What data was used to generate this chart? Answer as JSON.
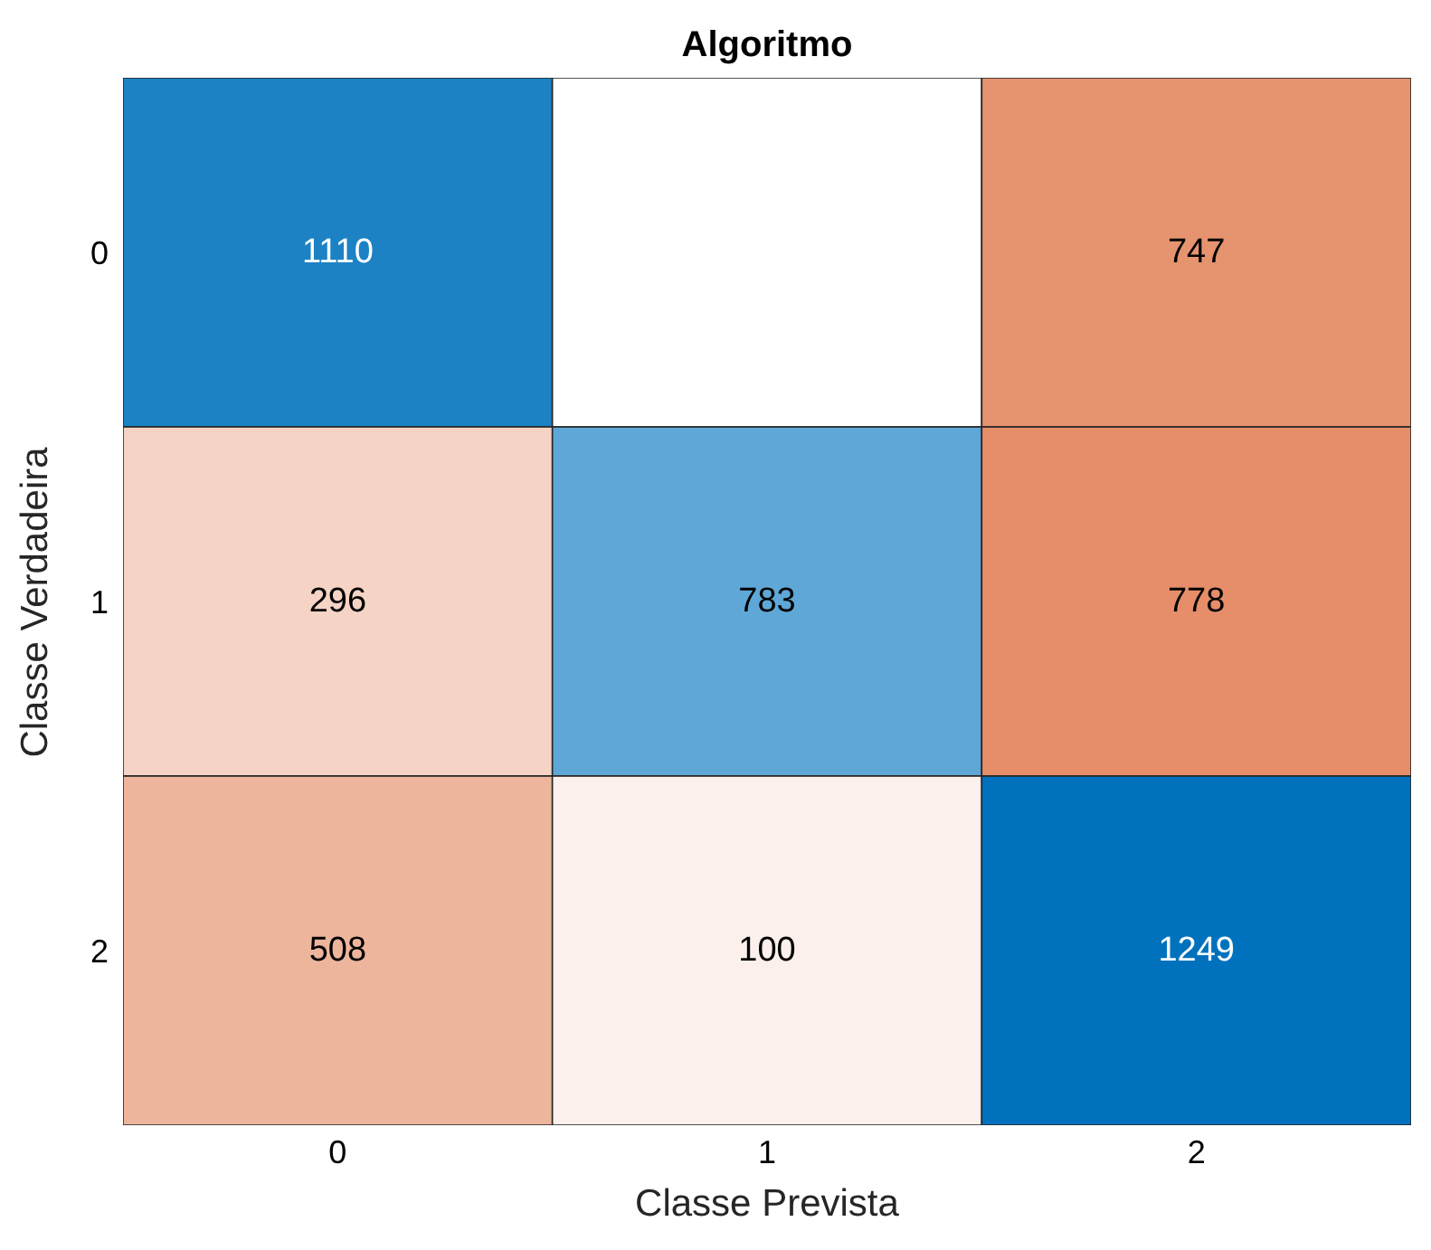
{
  "chart_data": {
    "type": "heatmap",
    "title": "Algoritmo",
    "xlabel": "Classe Prevista",
    "ylabel": "Classe Verdadeira",
    "categories": [
      "0",
      "1",
      "2"
    ],
    "y_categories": [
      "0",
      "1",
      "2"
    ],
    "cells": [
      [
        1110,
        null,
        747
      ],
      [
        296,
        783,
        778
      ],
      [
        508,
        100,
        1249
      ]
    ],
    "data_labels": true,
    "colors": [
      "#0072bd",
      "#e58e69"
    ]
  }
}
